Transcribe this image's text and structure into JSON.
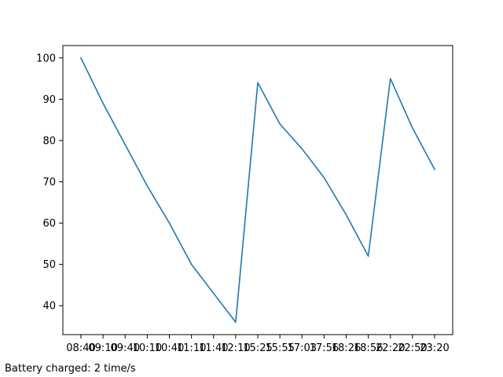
{
  "chart_data": {
    "type": "line",
    "title": "",
    "xlabel": "",
    "ylabel": "",
    "x": [
      "08:40",
      "09:10",
      "09:40",
      "10:10",
      "10:40",
      "11:10",
      "11:40",
      "12:10",
      "15:25",
      "15:55",
      "17:03",
      "17:56",
      "18:26",
      "18:56",
      "22:20",
      "22:50",
      "23:20"
    ],
    "series": [
      {
        "values": [
          100,
          89,
          79,
          69,
          60,
          50,
          43,
          36,
          94,
          84,
          78,
          71,
          62,
          52,
          95,
          83,
          73
        ],
        "color": "#1f77b4"
      }
    ],
    "ylim": [
      33,
      103
    ],
    "yticks": [
      40,
      50,
      60,
      70,
      80,
      90,
      100
    ],
    "grid": false,
    "legend": "none"
  },
  "footnote": "Battery charged: 2 time/s"
}
